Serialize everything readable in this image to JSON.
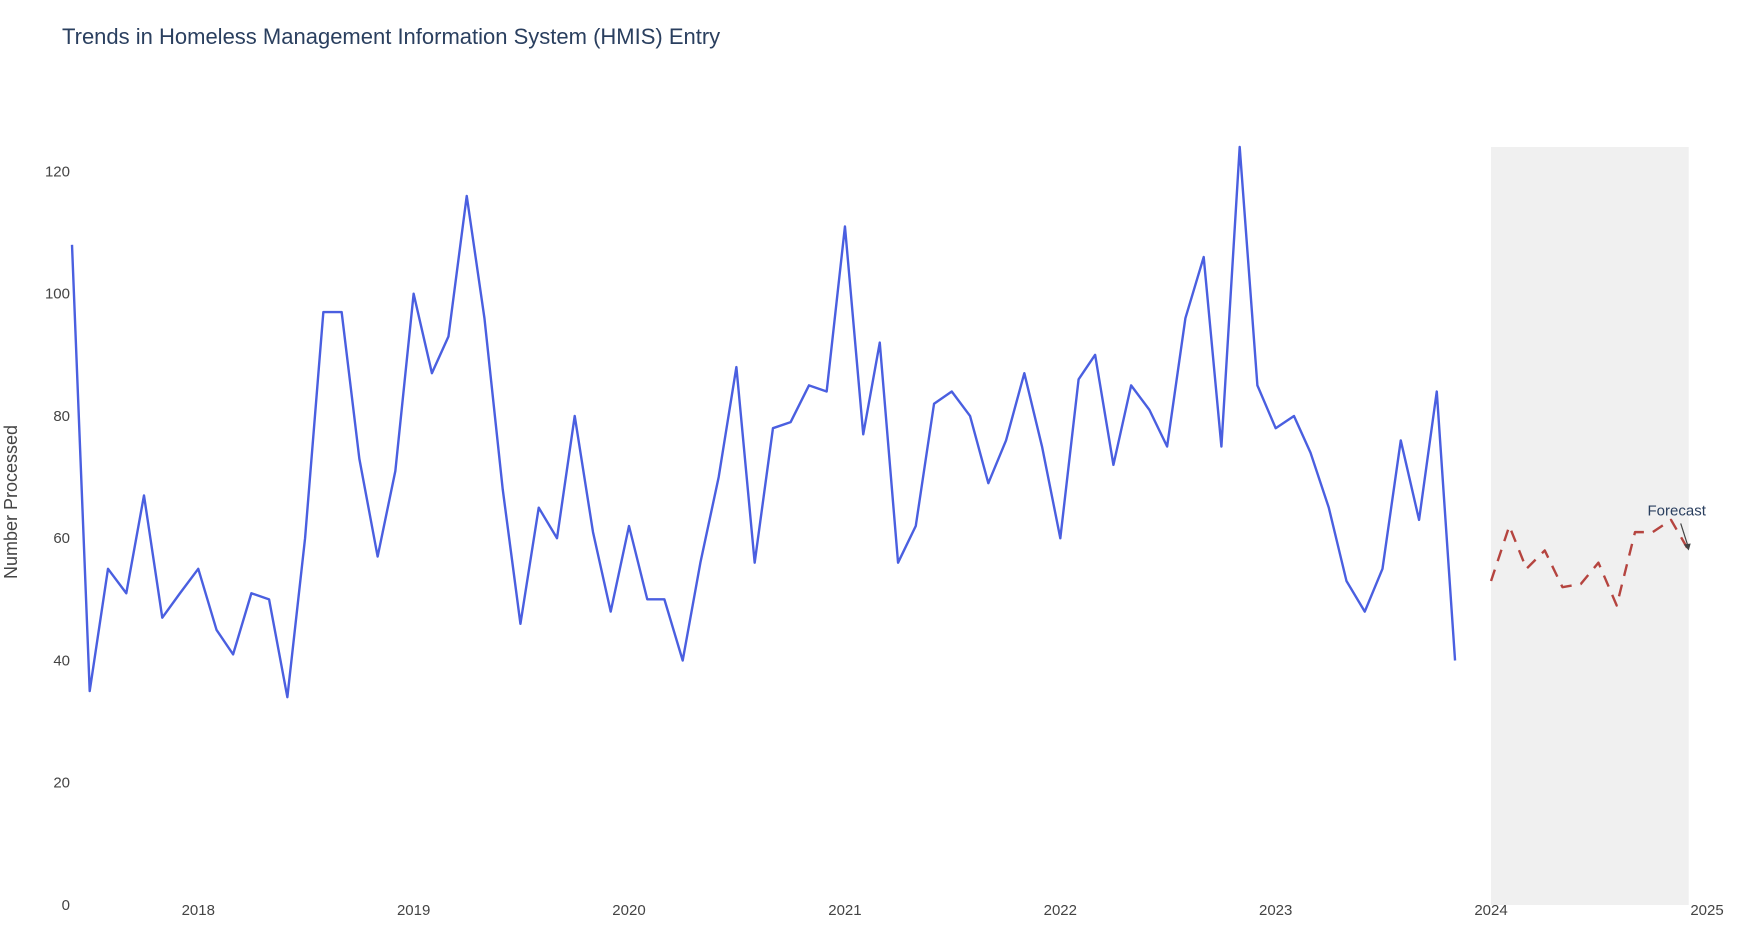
{
  "chart_data": {
    "type": "line",
    "title": "Trends in Homeless Management Information System (HMIS) Entry",
    "xlabel": "",
    "ylabel": "Number Processed",
    "ylim": [
      0,
      124
    ],
    "xlim": [
      "2017-06-01",
      "2025-01-01"
    ],
    "grid": false,
    "legend": "none",
    "y_ticks": [
      0,
      20,
      40,
      60,
      80,
      100,
      120
    ],
    "x_ticks": [
      "2018",
      "2019",
      "2020",
      "2021",
      "2022",
      "2023",
      "2024",
      "2025"
    ],
    "series": [
      {
        "style": "solid",
        "color": "#4A5FE0",
        "x": [
          "2017-06",
          "2017-07",
          "2017-08",
          "2017-09",
          "2017-10",
          "2017-11",
          "2017-12",
          "2018-01",
          "2018-02",
          "2018-03",
          "2018-04",
          "2018-05",
          "2018-06",
          "2018-07",
          "2018-08",
          "2018-09",
          "2018-10",
          "2018-11",
          "2018-12",
          "2019-01",
          "2019-02",
          "2019-03",
          "2019-04",
          "2019-05",
          "2019-06",
          "2019-07",
          "2019-08",
          "2019-09",
          "2019-10",
          "2019-11",
          "2019-12",
          "2020-01",
          "2020-02",
          "2020-03",
          "2020-04",
          "2020-05",
          "2020-06",
          "2020-07",
          "2020-08",
          "2020-09",
          "2020-10",
          "2020-11",
          "2020-12",
          "2021-01",
          "2021-02",
          "2021-03",
          "2021-04",
          "2021-05",
          "2021-06",
          "2021-07",
          "2021-08",
          "2021-09",
          "2021-10",
          "2021-11",
          "2021-12",
          "2022-01",
          "2022-02",
          "2022-03",
          "2022-04",
          "2022-05",
          "2022-06",
          "2022-07",
          "2022-08",
          "2022-09",
          "2022-10",
          "2022-11",
          "2022-12",
          "2023-01",
          "2023-02",
          "2023-03",
          "2023-04",
          "2023-05",
          "2023-06",
          "2023-07",
          "2023-08",
          "2023-09",
          "2023-10",
          "2023-11"
        ],
        "values": [
          108,
          35,
          55,
          51,
          67,
          47,
          51,
          55,
          45,
          41,
          51,
          50,
          34,
          60,
          97,
          97,
          73,
          57,
          71,
          100,
          87,
          93,
          116,
          96,
          68,
          46,
          65,
          60,
          80,
          61,
          48,
          62,
          50,
          50,
          40,
          56,
          70,
          88,
          56,
          78,
          79,
          85,
          84,
          111,
          77,
          92,
          56,
          62,
          82,
          84,
          80,
          69,
          76,
          87,
          75,
          60,
          86,
          90,
          72,
          85,
          81,
          75,
          96,
          106,
          75,
          124,
          85,
          78,
          80,
          74,
          65,
          53,
          48,
          55,
          76,
          63,
          84,
          40
        ]
      },
      {
        "style": "dashed",
        "color": "#B5443F",
        "x": [
          "2024-01",
          "2024-02",
          "2024-03",
          "2024-04",
          "2024-05",
          "2024-06",
          "2024-07",
          "2024-08",
          "2024-09",
          "2024-10",
          "2024-11",
          "2024-12"
        ],
        "values": [
          53,
          62,
          55,
          58,
          52,
          52.5,
          56,
          49,
          61,
          61,
          63,
          58
        ]
      }
    ],
    "forecast_region": {
      "start": "2024-01",
      "end": "2024-12",
      "fill": "#F0F0F0"
    },
    "annotations": [
      {
        "text": "Forecast",
        "x": "2024-12",
        "y": 58
      }
    ]
  },
  "colors": {
    "axis_text": "#444444",
    "title_text": "#2A3F5F",
    "annotation_text": "#2A3F5F",
    "arrow": "#444444"
  }
}
